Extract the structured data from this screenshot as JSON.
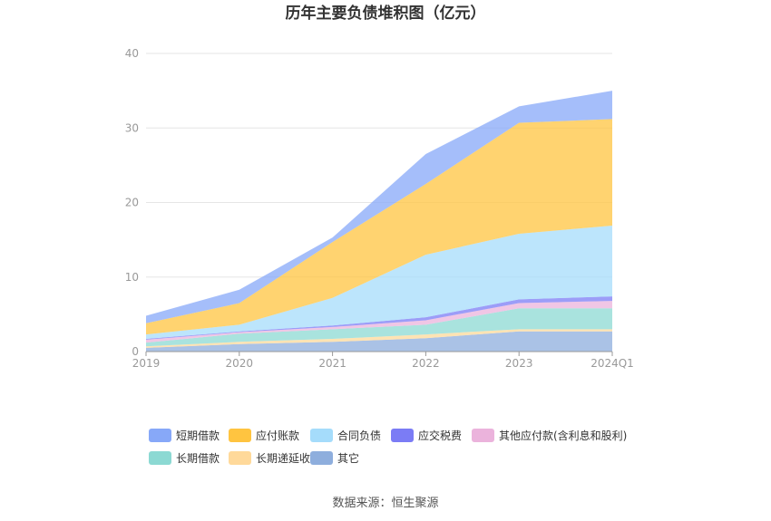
{
  "chart_data": {
    "type": "area",
    "stacked": true,
    "title": "历年主要负债堆积图（亿元）",
    "categories": [
      "2019",
      "2020",
      "2021",
      "2022",
      "2023",
      "2024Q1"
    ],
    "ylim": [
      0,
      40
    ],
    "yticks": [
      "0",
      "10",
      "20",
      "30",
      "40"
    ],
    "grid": true,
    "legend_position": "bottom",
    "series": [
      {
        "name": "其它",
        "color": "#8eaedd",
        "values": [
          0.5,
          1.0,
          1.3,
          1.8,
          2.7,
          2.7
        ]
      },
      {
        "name": "长期递延收益",
        "color": "#ffd99a",
        "values": [
          0.2,
          0.3,
          0.4,
          0.5,
          0.3,
          0.3
        ]
      },
      {
        "name": "长期借款",
        "color": "#8cd9d3",
        "values": [
          0.5,
          1.1,
          1.3,
          1.3,
          2.8,
          2.8
        ]
      },
      {
        "name": "其他应付款(含利息和股利)",
        "color": "#ebb3dc",
        "values": [
          0.4,
          0.2,
          0.3,
          0.6,
          0.7,
          1.0
        ]
      },
      {
        "name": "应交税费",
        "color": "#7b7cf5",
        "values": [
          0.1,
          0.1,
          0.2,
          0.4,
          0.5,
          0.6
        ]
      },
      {
        "name": "合同负债",
        "color": "#a5dcfb",
        "values": [
          0.6,
          0.9,
          3.7,
          8.4,
          8.8,
          9.5
        ]
      },
      {
        "name": "应付账款",
        "color": "#ffc440",
        "values": [
          1.5,
          2.9,
          7.5,
          9.5,
          14.9,
          14.3
        ]
      },
      {
        "name": "短期借款",
        "color": "#87a8f8",
        "values": [
          1.0,
          1.8,
          0.6,
          4.0,
          2.2,
          3.8
        ]
      }
    ],
    "legend_order": [
      "短期借款",
      "应付账款",
      "合同负债",
      "应交税费",
      "其他应付款(含利息和股利)",
      "长期借款",
      "长期递延收益",
      "其它"
    ]
  },
  "source_text": "数据来源：恒生聚源"
}
